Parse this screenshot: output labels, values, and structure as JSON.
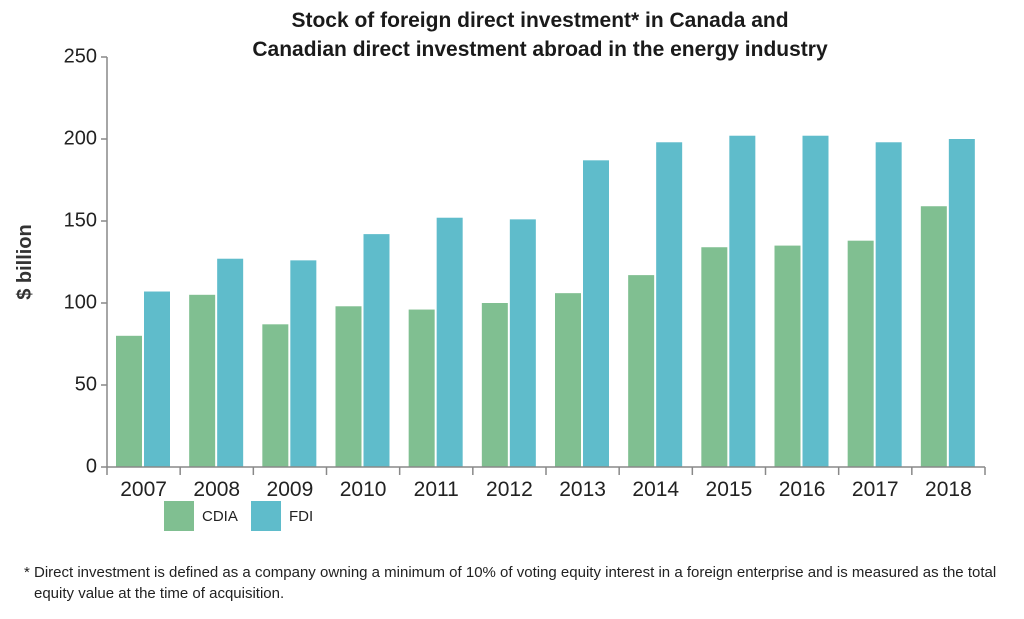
{
  "chart_data": {
    "type": "bar",
    "title_line1": "Stock of foreign direct investment* in Canada and",
    "title_line2": "Canadian direct investment abroad in the energy industry",
    "ylabel": "$ billion",
    "xlabel": "",
    "ylim": [
      0,
      250
    ],
    "yticks": [
      "0",
      "50",
      "100",
      "150",
      "200",
      "250"
    ],
    "categories": [
      "2007",
      "2008",
      "2009",
      "2010",
      "2011",
      "2012",
      "2013",
      "2014",
      "2015",
      "2016",
      "2017",
      "2018"
    ],
    "series": [
      {
        "name": "CDIA",
        "color": "#80bf91",
        "values": [
          80,
          105,
          87,
          98,
          96,
          100,
          106,
          117,
          134,
          135,
          138,
          159
        ]
      },
      {
        "name": "FDI",
        "color": "#5fbccb",
        "values": [
          107,
          127,
          126,
          142,
          152,
          151,
          187,
          198,
          202,
          202,
          198,
          200
        ]
      }
    ],
    "legend_position": "bottom-left",
    "grid": false
  },
  "footnote": "* Direct investment is defined as a company owning a minimum of 10% of voting equity interest in a foreign enterprise and is measured as the total equity value at the time of acquisition."
}
